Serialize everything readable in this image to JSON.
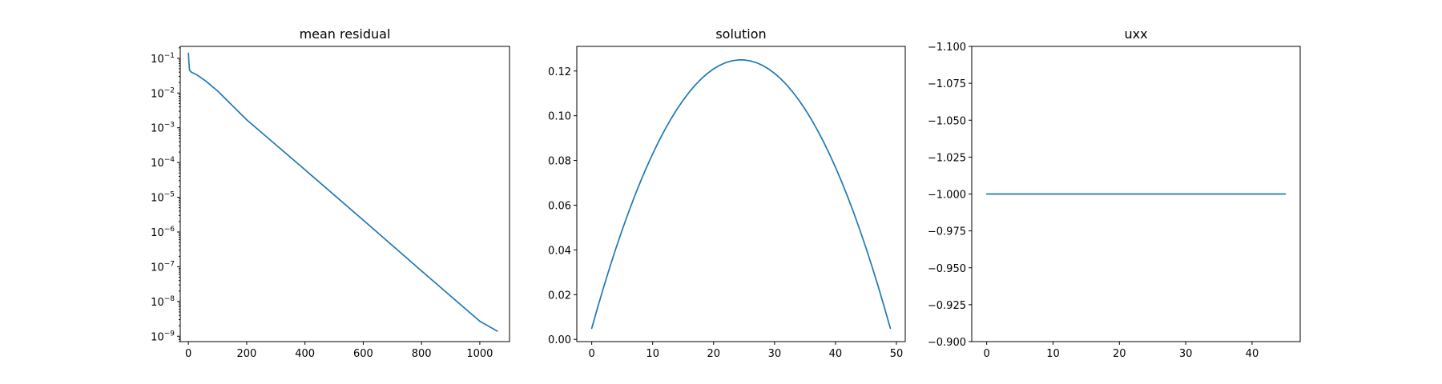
{
  "colors": {
    "line": "#1f77b4",
    "axes": "#000000",
    "background": "#ffffff"
  },
  "chart_data": [
    {
      "type": "line",
      "title": "mean residual",
      "xlabel": "",
      "ylabel": "",
      "yscale": "log",
      "grid": false,
      "xlim": [
        -28,
        1102
      ],
      "ylim": [
        7e-10,
        0.22
      ],
      "xticks": [
        0,
        200,
        400,
        600,
        800,
        1000
      ],
      "xtick_labels": [
        "0",
        "200",
        "400",
        "600",
        "800",
        "1000"
      ],
      "yticks": [
        1e-09,
        1e-08,
        1e-07,
        1e-06,
        1e-05,
        0.0001,
        0.001,
        0.01,
        0.1
      ],
      "ytick_labels": [
        {
          "base": "10",
          "exp": "−9"
        },
        {
          "base": "10",
          "exp": "−8"
        },
        {
          "base": "10",
          "exp": "−7"
        },
        {
          "base": "10",
          "exp": "−6"
        },
        {
          "base": "10",
          "exp": "−5"
        },
        {
          "base": "10",
          "exp": "−4"
        },
        {
          "base": "10",
          "exp": "−3"
        },
        {
          "base": "10",
          "exp": "−2"
        },
        {
          "base": "10",
          "exp": "−1"
        }
      ],
      "series": [
        {
          "x": [
            0,
            2,
            4,
            10,
            30,
            60,
            100,
            200,
            400,
            600,
            800,
            1000,
            1060
          ],
          "y": [
            0.14,
            0.07,
            0.045,
            0.04,
            0.033,
            0.022,
            0.0115,
            0.0017,
            6.2e-05,
            2.2e-06,
            7.6e-08,
            2.7e-09,
            1.4e-09
          ]
        }
      ]
    },
    {
      "type": "line",
      "title": "solution",
      "xlabel": "",
      "ylabel": "",
      "grid": false,
      "xlim": [
        -2.45,
        51.45
      ],
      "ylim": [
        -0.001,
        0.131
      ],
      "xticks": [
        0,
        10,
        20,
        30,
        40,
        50
      ],
      "xtick_labels": [
        "0",
        "10",
        "20",
        "30",
        "40",
        "50"
      ],
      "yticks": [
        0.0,
        0.02,
        0.04,
        0.06,
        0.08,
        0.1,
        0.12
      ],
      "ytick_labels": [
        "0.00",
        "0.02",
        "0.04",
        "0.06",
        "0.08",
        "0.10",
        "0.12"
      ],
      "series": [
        {
          "formula": "0.5*t*(1-t), t=(i+0.5)/50",
          "x": [
            0,
            1,
            2,
            3,
            4,
            5,
            6,
            7,
            8,
            9,
            10,
            11,
            12,
            13,
            14,
            15,
            16,
            17,
            18,
            19,
            20,
            21,
            22,
            23,
            24,
            25,
            26,
            27,
            28,
            29,
            30,
            31,
            32,
            33,
            34,
            35,
            36,
            37,
            38,
            39,
            40,
            41,
            42,
            43,
            44,
            45,
            46,
            47,
            48,
            49
          ],
          "y": [
            0.00495,
            0.01455,
            0.02375,
            0.03255,
            0.04095,
            0.04895,
            0.05655,
            0.06375,
            0.07055,
            0.07695,
            0.08295,
            0.08855,
            0.09375,
            0.09855,
            0.10295,
            0.10695,
            0.11055,
            0.11375,
            0.11655,
            0.11895,
            0.12095,
            0.12255,
            0.12375,
            0.12455,
            0.12495,
            0.12495,
            0.12455,
            0.12375,
            0.12255,
            0.12095,
            0.11895,
            0.11655,
            0.11375,
            0.11055,
            0.10695,
            0.10295,
            0.09855,
            0.09375,
            0.08855,
            0.08295,
            0.07695,
            0.07055,
            0.06375,
            0.05655,
            0.04895,
            0.04095,
            0.03255,
            0.02375,
            0.01455,
            0.00495
          ]
        }
      ]
    },
    {
      "type": "line",
      "title": "uxx",
      "xlabel": "",
      "ylabel": "",
      "grid": false,
      "xlim": [
        -2.25,
        47.25
      ],
      "ylim": [
        -1.1,
        -0.9
      ],
      "yaxis_inverted": true,
      "xticks": [
        0,
        10,
        20,
        30,
        40
      ],
      "xtick_labels": [
        "0",
        "10",
        "20",
        "30",
        "40"
      ],
      "yticks": [
        -1.1,
        -1.075,
        -1.05,
        -1.025,
        -1.0,
        -0.975,
        -0.95,
        -0.925,
        -0.9
      ],
      "ytick_labels": [
        "−1.100",
        "−1.075",
        "−1.050",
        "−1.025",
        "−1.000",
        "−0.975",
        "−0.950",
        "−0.925",
        "−0.900"
      ],
      "series": [
        {
          "x": [
            0,
            45
          ],
          "y": [
            -1.0,
            -1.0
          ]
        }
      ]
    }
  ]
}
